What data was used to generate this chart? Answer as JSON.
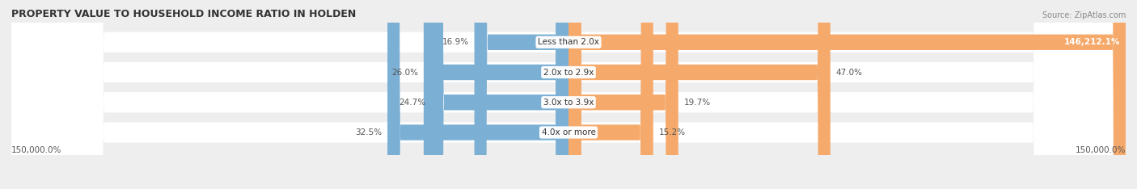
{
  "title": "PROPERTY VALUE TO HOUSEHOLD INCOME RATIO IN HOLDEN",
  "source": "Source: ZipAtlas.com",
  "categories": [
    "Less than 2.0x",
    "2.0x to 2.9x",
    "3.0x to 3.9x",
    "4.0x or more"
  ],
  "without_mortgage": [
    16.9,
    26.0,
    24.7,
    32.5
  ],
  "with_mortgage": [
    146212.1,
    47.0,
    19.7,
    15.2
  ],
  "without_mortgage_color": "#7bafd4",
  "with_mortgage_color": "#f5a96b",
  "bg_color": "#eeeeee",
  "title_fontsize": 9,
  "source_fontsize": 7,
  "label_fontsize": 7.5,
  "category_fontsize": 7.5,
  "value_fontsize": 7.5,
  "legend_fontsize": 7.5,
  "bar_height": 0.52,
  "xlim_left": -150000,
  "xlim_right": 150000,
  "axis_label_left": "150,000.0%",
  "axis_label_right": "150,000.0%"
}
